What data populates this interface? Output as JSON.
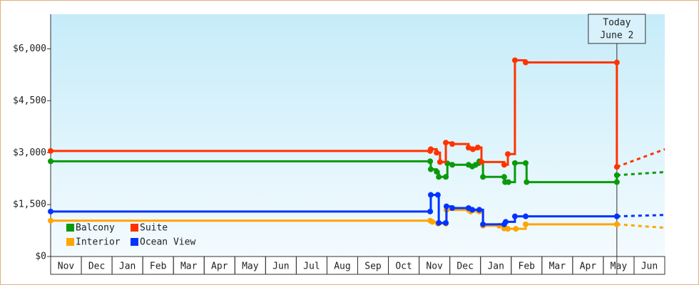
{
  "chart_data": {
    "type": "step-line",
    "categories": [
      "Nov",
      "Dec",
      "Jan",
      "Feb",
      "Mar",
      "Apr",
      "May",
      "Jun",
      "Jul",
      "Aug",
      "Sep",
      "Oct",
      "Nov",
      "Dec",
      "Jan",
      "Feb",
      "Mar",
      "Apr",
      "May",
      "Jun"
    ],
    "xlim": [
      0,
      20
    ],
    "ylim": [
      0,
      7000
    ],
    "yticks": [
      {
        "value": 0,
        "label": "$0"
      },
      {
        "value": 1500,
        "label": "$1,500"
      },
      {
        "value": 3000,
        "label": "$3,000"
      },
      {
        "value": 4500,
        "label": "$4,500"
      },
      {
        "value": 6000,
        "label": "$6,000"
      }
    ],
    "legend": "lower-left",
    "annotation": {
      "x": 18.44,
      "lines": [
        "Today",
        "June 2"
      ]
    },
    "series": [
      {
        "name": "Balcony",
        "color": "#0a9a0a",
        "x": [
          0,
          12.36,
          12.38,
          12.57,
          12.64,
          12.87,
          12.92,
          13.08,
          13.61,
          13.73,
          13.84,
          13.96,
          14.08,
          14.77,
          14.8,
          14.91,
          15.12,
          15.47,
          15.5,
          18.44,
          18.44
        ],
        "values": [
          2750,
          2750,
          2520,
          2450,
          2300,
          2300,
          2690,
          2650,
          2650,
          2600,
          2650,
          2750,
          2300,
          2300,
          2150,
          2150,
          2700,
          2700,
          2150,
          2150,
          2350
        ],
        "forecast": 2440
      },
      {
        "name": "Suite",
        "color": "#ff3300",
        "x": [
          0,
          12.36,
          12.38,
          12.57,
          12.68,
          12.87,
          13.08,
          13.61,
          13.75,
          13.91,
          14.03,
          14.77,
          14.89,
          15.12,
          15.47,
          18.44,
          18.44
        ],
        "values": [
          3050,
          3050,
          3100,
          3000,
          2730,
          3290,
          3250,
          3145,
          3100,
          3150,
          2730,
          2650,
          2960,
          5670,
          5607,
          5607,
          2590
        ],
        "forecast": 3100
      },
      {
        "name": "Interior",
        "color": "#ffa500",
        "x": [
          0,
          12.36,
          12.43,
          12.61,
          12.87,
          12.89,
          13.61,
          13.68,
          13.96,
          14.08,
          14.61,
          14.77,
          14.89,
          15.15,
          15.47,
          18.44
        ],
        "values": [
          1035,
          1035,
          1000,
          950,
          950,
          1345,
          1345,
          1300,
          1300,
          890,
          890,
          810,
          800,
          800,
          930,
          930
        ],
        "forecast": 830
      },
      {
        "name": "Ocean View",
        "color": "#0033ff",
        "x": [
          0,
          12.36,
          12.38,
          12.61,
          12.64,
          12.87,
          12.89,
          13.08,
          13.61,
          13.73,
          13.96,
          14.08,
          14.77,
          14.82,
          15.12,
          15.47,
          18.44
        ],
        "values": [
          1300,
          1300,
          1780,
          1780,
          970,
          970,
          1450,
          1400,
          1400,
          1350,
          1350,
          930,
          930,
          1000,
          1160,
          1160,
          1160
        ],
        "forecast": 1200
      }
    ]
  }
}
